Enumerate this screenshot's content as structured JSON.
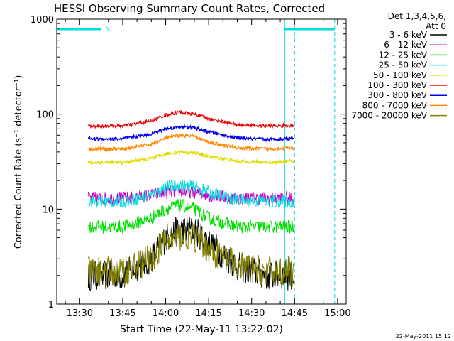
{
  "chart_data": {
    "type": "line",
    "title": "HESSI Observing Summary Count Rates, Corrected",
    "xlabel": "Start Time (22-May-11 13:22:02)",
    "ylabel": "Corrected Count Rate (s⁻¹ detector⁻¹)",
    "yscale": "log",
    "ylim": [
      1,
      1000
    ],
    "xlim": [
      "13:22",
      "15:03"
    ],
    "x_ticks": [
      "13:30",
      "13:45",
      "14:00",
      "14:15",
      "14:30",
      "14:45",
      "15:00"
    ],
    "y_ticks": [
      "1",
      "10",
      "100",
      "1000"
    ],
    "legend_header": [
      "Det 1,3,4,5,6,",
      "Att 0"
    ],
    "legend_position": "right",
    "timestamp": "22-May-2011 15:12",
    "night_marker": "N",
    "data_start": "13:33",
    "data_end": "14:45",
    "series": [
      {
        "name": "3 - 6 keV",
        "color": "#000000",
        "x": [
          "13:33",
          "13:45",
          "13:55",
          "14:00",
          "14:05",
          "14:10",
          "14:15",
          "14:25",
          "14:35",
          "14:45"
        ],
        "values": [
          2,
          2,
          3,
          5,
          6,
          6,
          4.5,
          2.5,
          2,
          2
        ]
      },
      {
        "name": "6 - 12 keV",
        "color": "#cc00cc",
        "x": [
          "13:33",
          "13:45",
          "13:55",
          "14:00",
          "14:05",
          "14:10",
          "14:15",
          "14:25",
          "14:35",
          "14:45"
        ],
        "values": [
          13,
          13,
          14,
          15,
          15.5,
          15,
          14,
          13,
          13,
          13
        ]
      },
      {
        "name": "12 - 25 keV",
        "color": "#00dd00",
        "x": [
          "13:33",
          "13:45",
          "13:55",
          "14:00",
          "14:05",
          "14:10",
          "14:15",
          "14:25",
          "14:35",
          "14:45"
        ],
        "values": [
          6.5,
          6.5,
          8,
          10,
          11,
          10,
          8,
          6.5,
          6.5,
          6.5
        ]
      },
      {
        "name": "25 - 50 keV",
        "color": "#00dddd",
        "x": [
          "13:33",
          "13:45",
          "13:55",
          "14:00",
          "14:05",
          "14:10",
          "14:15",
          "14:25",
          "14:35",
          "14:45"
        ],
        "values": [
          12,
          12,
          14,
          17,
          18,
          17,
          15,
          12.5,
          12,
          12
        ]
      },
      {
        "name": "50 - 100 keV",
        "color": "#dddd00",
        "x": [
          "13:33",
          "13:45",
          "13:55",
          "14:00",
          "14:05",
          "14:10",
          "14:15",
          "14:25",
          "14:35",
          "14:45"
        ],
        "values": [
          31,
          31,
          34,
          38,
          40,
          39,
          36,
          32,
          31,
          32
        ]
      },
      {
        "name": "100 - 300 keV",
        "color": "#ee0000",
        "x": [
          "13:33",
          "13:45",
          "13:55",
          "14:00",
          "14:05",
          "14:10",
          "14:15",
          "14:25",
          "14:35",
          "14:45"
        ],
        "values": [
          75,
          75,
          85,
          98,
          105,
          100,
          90,
          77,
          75,
          76
        ]
      },
      {
        "name": "300 - 800 keV",
        "color": "#0000ee",
        "x": [
          "13:33",
          "13:45",
          "13:55",
          "14:00",
          "14:05",
          "14:10",
          "14:15",
          "14:25",
          "14:35",
          "14:45"
        ],
        "values": [
          55,
          55,
          62,
          70,
          74,
          72,
          65,
          56,
          54,
          56
        ]
      },
      {
        "name": "800 - 7000 keV",
        "color": "#ff8800",
        "x": [
          "13:33",
          "13:45",
          "13:55",
          "14:00",
          "14:05",
          "14:10",
          "14:15",
          "14:25",
          "14:35",
          "14:45"
        ],
        "values": [
          43,
          43,
          48,
          56,
          60,
          58,
          51,
          44,
          43,
          44
        ]
      },
      {
        "name": "7000 - 20000 keV",
        "color": "#808000",
        "x": [
          "13:33",
          "13:45",
          "13:55",
          "14:00",
          "14:05",
          "14:10",
          "14:15",
          "14:25",
          "14:35",
          "14:45"
        ],
        "values": [
          2.2,
          2.2,
          3,
          4.5,
          5.2,
          5,
          3.8,
          2.5,
          2.2,
          2.2
        ]
      }
    ]
  },
  "colors": {
    "orbit_markers": "#00dddd",
    "axes": "#000000",
    "background": "#ffffff"
  }
}
